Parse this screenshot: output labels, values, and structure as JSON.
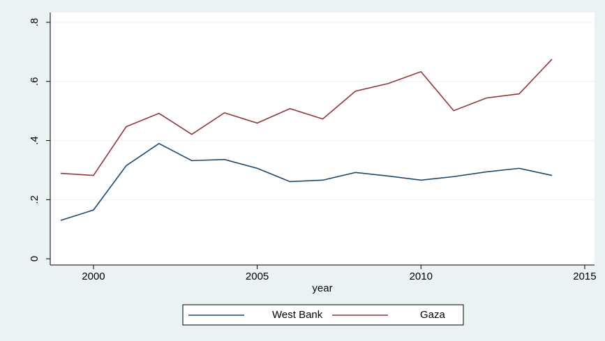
{
  "chart_data": {
    "type": "line",
    "x": [
      1999,
      2000,
      2001,
      2002,
      2003,
      2004,
      2005,
      2006,
      2007,
      2008,
      2009,
      2010,
      2011,
      2012,
      2013,
      2014
    ],
    "series": [
      {
        "name": "West Bank",
        "color": "#1a476f",
        "values": [
          0.13,
          0.165,
          0.315,
          0.39,
          0.332,
          0.336,
          0.306,
          0.261,
          0.266,
          0.292,
          0.28,
          0.266,
          0.278,
          0.294,
          0.306,
          0.282
        ]
      },
      {
        "name": "Gaza",
        "color": "#90353b",
        "values": [
          0.289,
          0.282,
          0.447,
          0.492,
          0.421,
          0.494,
          0.459,
          0.508,
          0.473,
          0.567,
          0.593,
          0.633,
          0.501,
          0.544,
          0.558,
          0.675
        ]
      }
    ],
    "xlabel": "year",
    "xlim": [
      1998.68,
      2015.3
    ],
    "xticks": [
      2000,
      2005,
      2010,
      2015
    ],
    "ylim": [
      -0.021,
      0.833
    ],
    "yticks": [
      0,
      {
        "value": 0.2,
        "label": ".2"
      },
      {
        "value": 0.4,
        "label": ".4"
      },
      {
        "value": 0.6,
        "label": ".6"
      },
      {
        "value": 0.8,
        "label": ".8"
      }
    ],
    "grid": true,
    "legend": "bottom"
  }
}
